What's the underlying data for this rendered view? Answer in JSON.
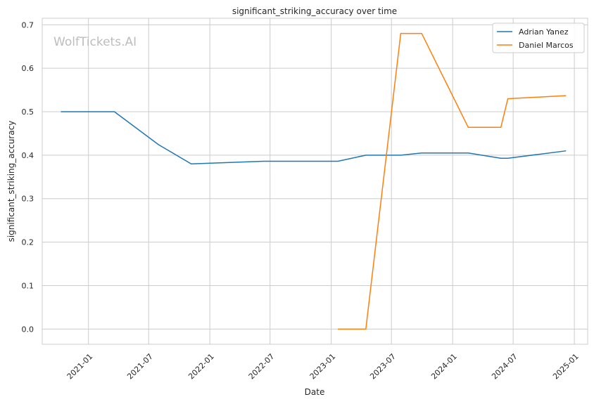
{
  "chart_data": {
    "type": "line",
    "title": "significant_striking_accuracy over time",
    "xlabel": "Date",
    "ylabel": "significant_striking_accuracy",
    "watermark": "WolfTickets.AI",
    "x_axis_type": "date",
    "xlim": [
      "2020-08-15",
      "2025-02-10"
    ],
    "ylim": [
      -0.035,
      0.715
    ],
    "x_ticks": [
      "2021-01",
      "2021-07",
      "2022-01",
      "2022-07",
      "2023-01",
      "2023-07",
      "2024-01",
      "2024-07",
      "2025-01"
    ],
    "y_ticks": [
      "0.0",
      "0.1",
      "0.2",
      "0.3",
      "0.4",
      "0.5",
      "0.6",
      "0.7"
    ],
    "grid": true,
    "legend_position": "top-right",
    "series": [
      {
        "name": "Adrian Yanez",
        "color": "#1f77b4",
        "points": [
          {
            "x": "2020-10-10",
            "y": 0.5
          },
          {
            "x": "2021-03-20",
            "y": 0.5
          },
          {
            "x": "2021-07-31",
            "y": 0.424
          },
          {
            "x": "2021-11-06",
            "y": 0.38
          },
          {
            "x": "2022-06-11",
            "y": 0.386
          },
          {
            "x": "2023-01-21",
            "y": 0.386
          },
          {
            "x": "2023-04-15",
            "y": 0.4
          },
          {
            "x": "2023-07-29",
            "y": 0.4
          },
          {
            "x": "2023-09-30",
            "y": 0.405
          },
          {
            "x": "2024-02-17",
            "y": 0.405
          },
          {
            "x": "2024-05-25",
            "y": 0.393
          },
          {
            "x": "2024-06-15",
            "y": 0.393
          },
          {
            "x": "2024-12-07",
            "y": 0.41
          }
        ]
      },
      {
        "name": "Daniel Marcos",
        "color": "#ff7f0e",
        "points": [
          {
            "x": "2023-01-21",
            "y": 0.0
          },
          {
            "x": "2023-04-15",
            "y": 0.0
          },
          {
            "x": "2023-07-29",
            "y": 0.68
          },
          {
            "x": "2023-09-30",
            "y": 0.68
          },
          {
            "x": "2024-02-17",
            "y": 0.464
          },
          {
            "x": "2024-05-25",
            "y": 0.464
          },
          {
            "x": "2024-06-15",
            "y": 0.53
          },
          {
            "x": "2024-12-07",
            "y": 0.537
          }
        ]
      }
    ]
  }
}
